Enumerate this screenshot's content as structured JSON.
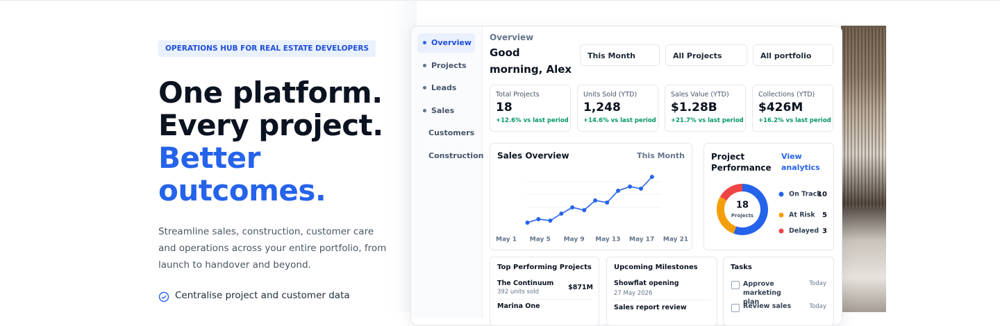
{
  "hero": {
    "badge": "OPERATIONS HUB FOR REAL ESTATE DEVELOPERS",
    "headline": [
      "One platform.",
      "Every project."
    ],
    "headline_accent": [
      "Better",
      "outcomes."
    ],
    "description": "Streamline sales, construction, customer care and operations across your entire portfolio, from launch to handover and beyond.",
    "features": [
      "Centralise project and customer data"
    ]
  },
  "sidebar": {
    "items": [
      "Overview",
      "Projects",
      "Leads",
      "Sales",
      "Customers",
      "Construction"
    ]
  },
  "dashboard": {
    "section": "Overview",
    "greeting": "Good morning, Alex",
    "filters": [
      "This Month",
      "All Projects",
      "All portfolio"
    ],
    "kpis": [
      {
        "label": "Total Projects",
        "value": "18",
        "change": "+12.6% vs last period"
      },
      {
        "label": "Units Sold (YTD)",
        "value": "1,248",
        "change": "+14.6% vs last period"
      },
      {
        "label": "Sales Value (YTD)",
        "value": "$1.28B",
        "change": "+21.7% vs last period"
      },
      {
        "label": "Collections (YTD)",
        "value": "$426M",
        "change": "+16.2% vs last period"
      }
    ],
    "top_projects": {
      "title": "Top Performing Projects",
      "rows": [
        {
          "name": "The Continuum",
          "detail": "392 units sold",
          "value": "$871M"
        },
        {
          "name": "Marina One"
        }
      ]
    },
    "milestones": {
      "title": "Upcoming Milestones",
      "rows": [
        {
          "name": "Showflat opening",
          "date": "27 May 2026"
        },
        {
          "name": "Sales report review"
        }
      ]
    },
    "tasks": {
      "title": "Tasks",
      "rows": [
        {
          "text": "Approve marketing plan",
          "due": "Today"
        },
        {
          "text": "Review sales",
          "due": "Today"
        }
      ]
    }
  },
  "chart_data": [
    {
      "type": "line",
      "title": "Sales Overview",
      "subtitle": "This Month",
      "x": [
        3.5,
        4.8,
        6.2,
        7.5,
        8.8,
        10.2,
        11.5,
        12.9,
        14.2,
        15.6,
        16.9,
        18.2
      ],
      "values": [
        20,
        25,
        23,
        33,
        42,
        38,
        52,
        49,
        66,
        72,
        69,
        86
      ],
      "color": "#2563eb",
      "xlim": [
        1,
        21
      ],
      "xticks": [
        {
          "value": 1,
          "label": "May 1"
        },
        {
          "value": 5,
          "label": "May 5"
        },
        {
          "value": 9,
          "label": "May 9"
        },
        {
          "value": 13,
          "label": "May 13"
        },
        {
          "value": 17,
          "label": "May 17"
        },
        {
          "value": 21,
          "label": "May 21"
        }
      ],
      "ylim": [
        0,
        100
      ],
      "yticks": [
        42,
        61,
        79
      ],
      "grid": true
    },
    {
      "type": "donut",
      "title": "Project Performance",
      "action": "View analytics",
      "total": 18,
      "center_label": "Projects",
      "categories": [
        "On Track",
        "At Risk",
        "Delayed"
      ],
      "values": [
        10,
        5,
        3
      ],
      "colors": [
        "#2563eb",
        "#f59e0b",
        "#ef4444"
      ]
    }
  ]
}
